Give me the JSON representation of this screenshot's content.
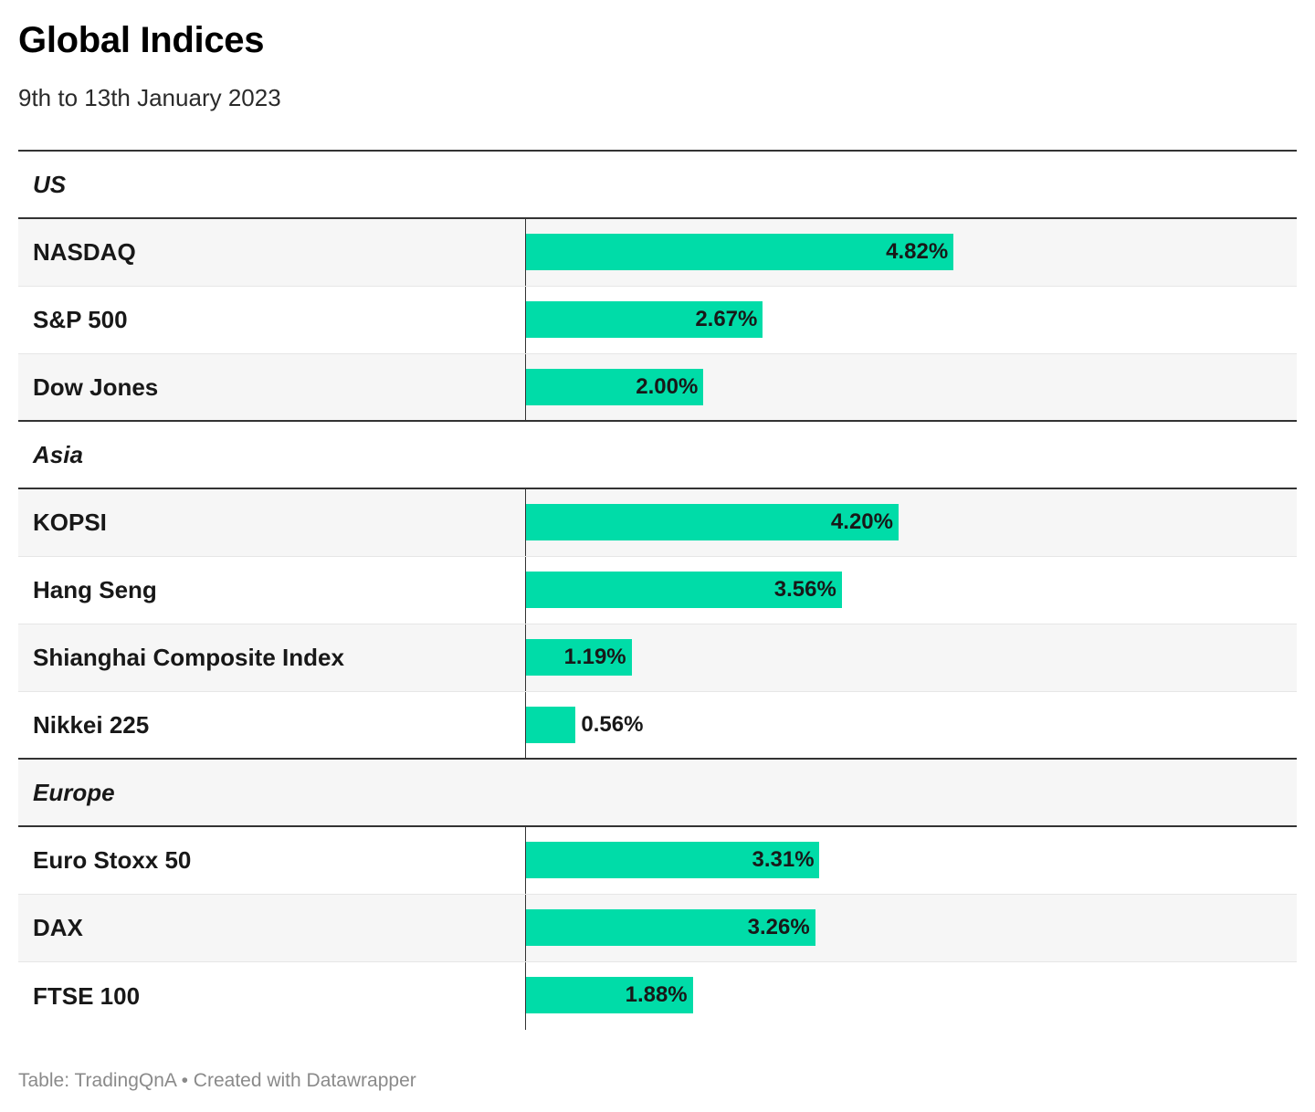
{
  "header": {
    "title": "Global Indices",
    "subtitle": "9th to 13th January 2023"
  },
  "footer": {
    "text": "Table: TradingQnA • Created with Datawrapper"
  },
  "colors": {
    "bar": "#00dca8",
    "row_shade": "#f6f6f6",
    "rule": "#333333"
  },
  "chart_data": {
    "type": "bar",
    "title": "Global Indices",
    "subtitle": "9th to 13th January 2023",
    "value_format": "percent",
    "xlim": [
      0,
      8.7
    ],
    "groups": [
      {
        "name": "US",
        "rows": [
          {
            "label": "NASDAQ",
            "value": 4.82,
            "display": "4.82%"
          },
          {
            "label": "S&P 500",
            "value": 2.67,
            "display": "2.67%"
          },
          {
            "label": "Dow Jones",
            "value": 2.0,
            "display": "2.00%"
          }
        ]
      },
      {
        "name": "Asia",
        "rows": [
          {
            "label": "KOPSI",
            "value": 4.2,
            "display": "4.20%"
          },
          {
            "label": "Hang Seng",
            "value": 3.56,
            "display": "3.56%"
          },
          {
            "label": "Shianghai Composite Index",
            "value": 1.19,
            "display": "1.19%"
          },
          {
            "label": "Nikkei 225",
            "value": 0.56,
            "display": "0.56%"
          }
        ]
      },
      {
        "name": "Europe",
        "rows": [
          {
            "label": "Euro Stoxx 50",
            "value": 3.31,
            "display": "3.31%"
          },
          {
            "label": "DAX",
            "value": 3.26,
            "display": "3.26%"
          },
          {
            "label": "FTSE 100",
            "value": 1.88,
            "display": "1.88%"
          }
        ]
      }
    ]
  }
}
